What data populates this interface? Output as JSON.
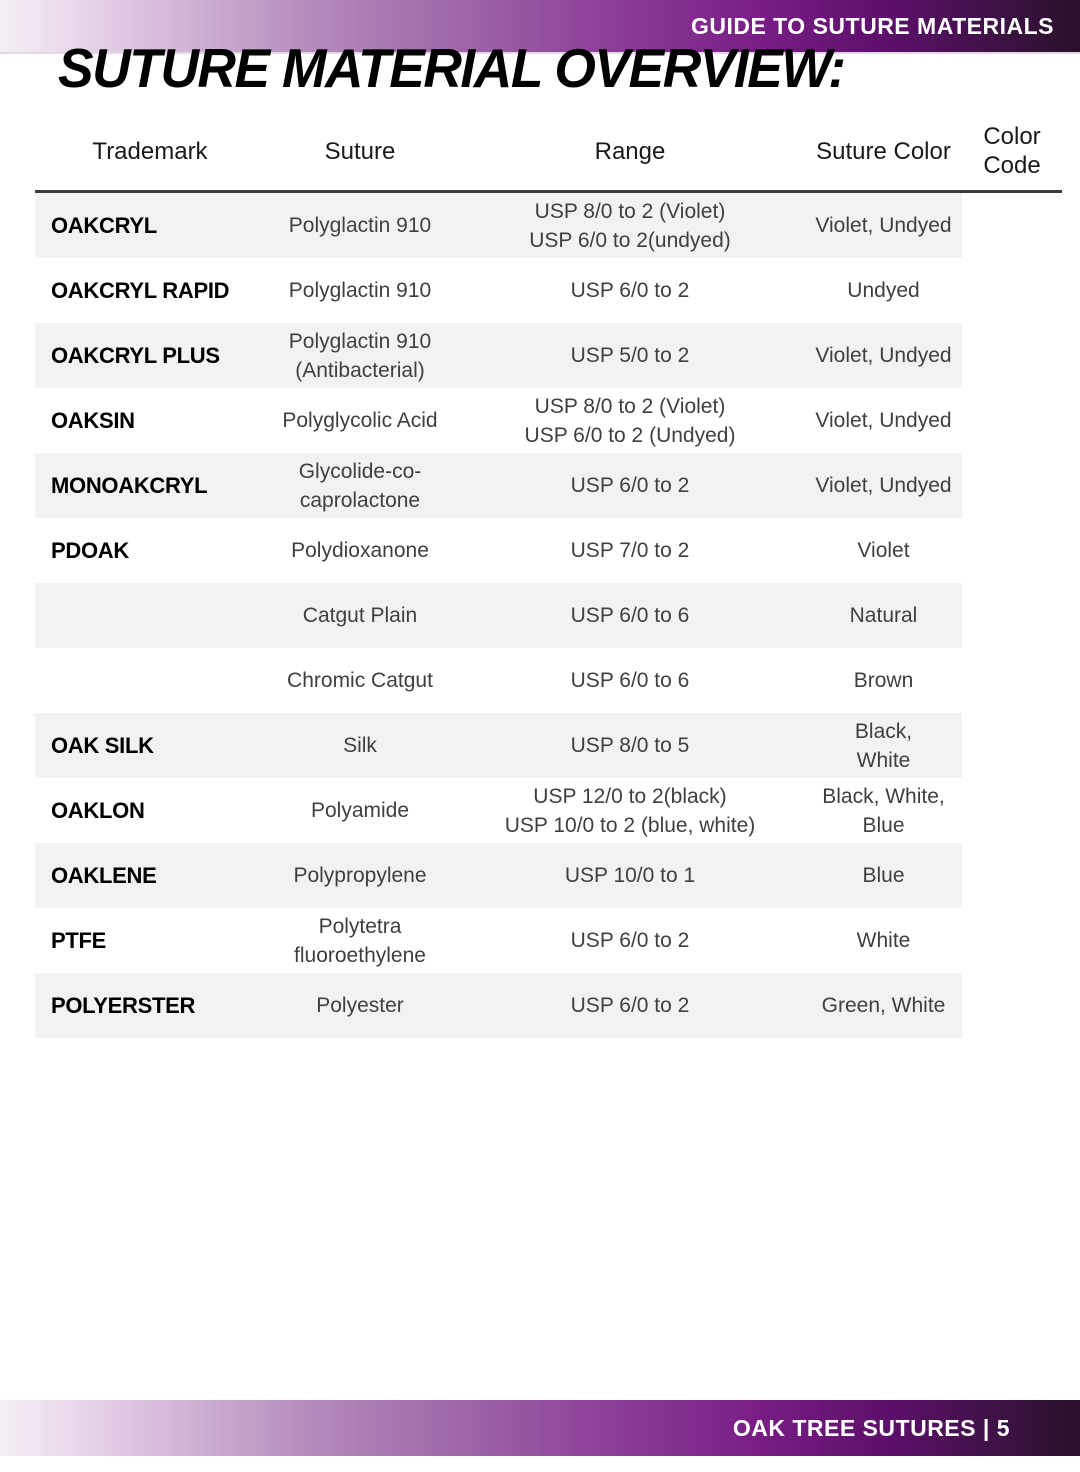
{
  "topbar": {
    "title": "GUIDE TO SUTURE MATERIALS"
  },
  "page": {
    "title": "SUTURE MATERIAL OVERVIEW:"
  },
  "table": {
    "columns": [
      "Trademark",
      "Suture",
      "Range",
      "Suture Color",
      "Color Code"
    ],
    "rows": [
      {
        "trademark": "OAKCRYL",
        "suture": "Polyglactin 910",
        "range": "USP 8/0 to 2 (Violet)\nUSP 6/0 to 2(undyed)",
        "suture_color": "Violet, Undyed",
        "color_code": "#9b99fa",
        "color_name": "periwinkle"
      },
      {
        "trademark": "OAKCRYL RAPID",
        "suture": "Polyglactin 910",
        "range": "USP 6/0 to 2",
        "suture_color": "Undyed",
        "color_code": "#cdccf6",
        "color_name": "light-lavender"
      },
      {
        "trademark": "OAKCRYL PLUS",
        "suture": "Polyglactin 910\n(Antibacterial)",
        "range": "USP 5/0 to 2",
        "suture_color": "Violet, Undyed",
        "color_code": "#7030a0",
        "color_name": "dark-purple"
      },
      {
        "trademark": "OAKSIN",
        "suture": "Polyglycolic Acid",
        "range": "USP 8/0 to 2 (Violet)\nUSP 6/0 to 2 (Undyed)",
        "suture_color": "Violet, Undyed",
        "color_code": "#c9a0f4",
        "color_name": "lilac"
      },
      {
        "trademark": "MONOAKCRYL",
        "suture": "Glycolide-co-\ncaprolactone",
        "range": "USP 6/0 to 2",
        "suture_color": "Violet, Undyed",
        "color_code": "#ff9598",
        "color_name": "salmon"
      },
      {
        "trademark": "PDOAK",
        "suture": "Polydioxanone",
        "range": "USP 7/0 to 2",
        "suture_color": "Violet",
        "color_code": "#929292",
        "color_name": "gray"
      },
      {
        "trademark": "",
        "suture": "Catgut Plain",
        "range": "USP 6/0 to 6",
        "suture_color": "Natural",
        "color_code": "#9c6b00",
        "color_name": "brown"
      },
      {
        "trademark": "",
        "suture": "Chromic Catgut",
        "range": "USP 6/0 to 6",
        "suture_color": "Brown",
        "color_code": "#9c6b00",
        "color_name": "brown"
      },
      {
        "trademark": "OAK SILK",
        "suture": "Silk",
        "range": "USP 8/0 to 5",
        "suture_color": "Black,\nWhite",
        "color_code": "#9dc3e6",
        "color_name": "light-blue"
      },
      {
        "trademark": "OAKLON",
        "suture": "Polyamide",
        "range": "USP 12/0 to 2(black)\nUSP 10/0 to 2 (blue, white)",
        "suture_color": "Black, White,\nBlue",
        "color_code": "#92d050",
        "color_name": "green"
      },
      {
        "trademark": "OAKLENE",
        "suture": "Polypropylene",
        "range": "USP 10/0 to 1",
        "suture_color": "Blue",
        "color_code": "#2f5496",
        "color_name": "dark-blue"
      },
      {
        "trademark": "PTFE",
        "suture": "Polytetra\nfluoroethylene",
        "range": "USP 6/0 to 2",
        "suture_color": "White",
        "color_code": null,
        "color_name": "white-none"
      },
      {
        "trademark": "POLYERSTER",
        "suture": "Polyester",
        "range": "USP 6/0 to 2",
        "suture_color": "Green, White",
        "color_code": "#008080",
        "color_name": "teal"
      }
    ]
  },
  "footer": {
    "title": "OAK TREE SUTURES | 5"
  },
  "colors": {
    "bar_gradient_left": "#f6eff6",
    "bar_gradient_mid": "#8a3b96",
    "bar_gradient_right": "#291028",
    "row_stripe": "#f2f2f2",
    "header_rule": "#3b3b3b",
    "body_text": "#3f3f3f",
    "trademark_text": "#000000"
  }
}
